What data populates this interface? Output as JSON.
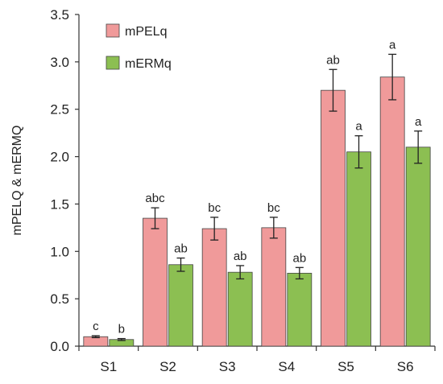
{
  "chart_data": {
    "type": "bar",
    "ylabel": "mPELQ & mERMQ",
    "xlabel": "",
    "title": "",
    "ylim": [
      0,
      3.5
    ],
    "yticks": [
      "0.0",
      "0.5",
      "1.0",
      "1.5",
      "2.0",
      "2.5",
      "3.0",
      "3.5"
    ],
    "categories": [
      "S1",
      "S2",
      "S3",
      "S4",
      "S5",
      "S6"
    ],
    "legend_position": "top-left",
    "grid": false,
    "series": [
      {
        "name": "mPELq",
        "color": "#f09a9a",
        "values": [
          0.1,
          1.35,
          1.24,
          1.25,
          2.7,
          2.84
        ],
        "errors": [
          0.01,
          0.11,
          0.12,
          0.11,
          0.22,
          0.24
        ],
        "labels": [
          "c",
          "abc",
          "bc",
          "bc",
          "ab",
          "a"
        ]
      },
      {
        "name": "mERMq",
        "color": "#8cbf52",
        "values": [
          0.07,
          0.86,
          0.78,
          0.77,
          2.05,
          2.1
        ],
        "errors": [
          0.01,
          0.07,
          0.07,
          0.06,
          0.17,
          0.17
        ],
        "labels": [
          "b",
          "ab",
          "ab",
          "ab",
          "a",
          "a"
        ]
      }
    ]
  }
}
